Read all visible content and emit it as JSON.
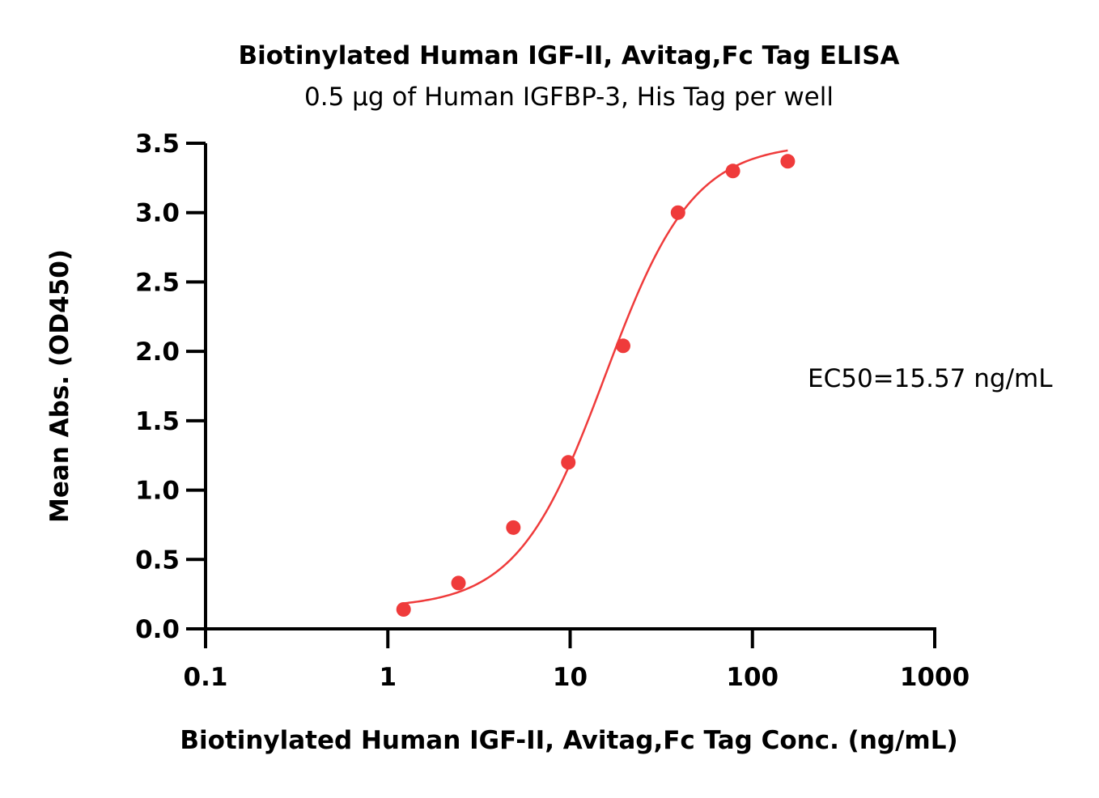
{
  "chart_data": {
    "type": "scatter",
    "title": "Biotinylated Human IGF-II, Avitag,Fc Tag ELISA",
    "subtitle": "0.5 μg of Human IGFBP-3, His Tag per well",
    "xlabel": "Biotinylated Human IGF-II, Avitag,Fc Tag Conc. (ng/mL)",
    "ylabel": "Mean Abs. (OD450)",
    "xscale": "log",
    "xlim": [
      0.1,
      1000
    ],
    "ylim": [
      0,
      3.5
    ],
    "x_ticks": [
      0.1,
      1,
      10,
      100,
      1000
    ],
    "x_tick_labels": [
      "0.1",
      "1",
      "10",
      "100",
      "1000"
    ],
    "y_ticks": [
      0,
      0.5,
      1,
      1.5,
      2,
      2.5,
      3,
      3.5
    ],
    "y_tick_labels": [
      "0.0",
      "0.5",
      "1.0",
      "1.5",
      "2.0",
      "2.5",
      "3.0",
      "3.5"
    ],
    "grid": false,
    "series": [
      {
        "color": "#ef3b3b",
        "x": [
          1.22,
          2.44,
          4.88,
          9.77,
          19.53,
          39.06,
          78.13,
          156.25
        ],
        "y": [
          0.14,
          0.33,
          0.73,
          1.2,
          2.04,
          3.0,
          3.3,
          3.37
        ]
      }
    ],
    "fit": {
      "type": "4PL",
      "color": "#ef3b3b",
      "bottom": 0.15,
      "top": 3.5,
      "ec50": 15.57,
      "hill": 1.8,
      "x_range": [
        1.22,
        156.25
      ]
    },
    "annotation": "EC50=15.57 ng/mL"
  }
}
